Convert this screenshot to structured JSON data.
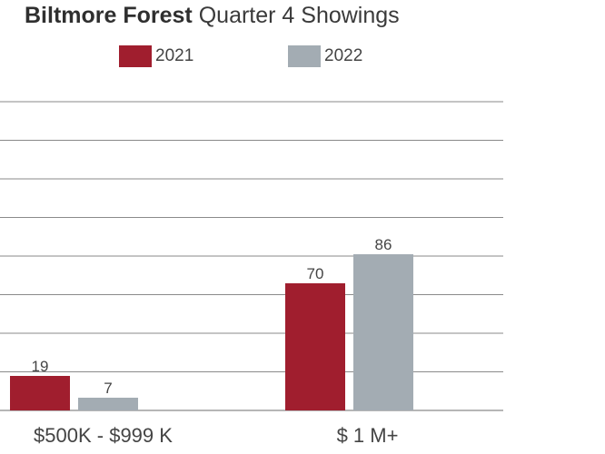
{
  "title": {
    "bold": "Biltmore Forest",
    "rest": "Quarter 4 Showings"
  },
  "colors": {
    "series_2021": "#a01e2e",
    "series_2022": "#a3acb3",
    "grid": "#8a8a8a",
    "text": "#444444"
  },
  "chart_data": {
    "type": "bar",
    "title": "Biltmore Forest Quarter 4 Showings",
    "categories": [
      "$500K - $999 K",
      "$ 1 M+"
    ],
    "series": [
      {
        "name": "2021",
        "values": [
          19,
          70
        ]
      },
      {
        "name": "2022",
        "values": [
          7,
          86
        ]
      }
    ],
    "data_labels": [
      [
        "19",
        "7"
      ],
      [
        "70",
        "86"
      ]
    ],
    "ylim": [
      0,
      160
    ],
    "grid": true,
    "legend": "top-center",
    "xlabel": "",
    "ylabel": ""
  }
}
